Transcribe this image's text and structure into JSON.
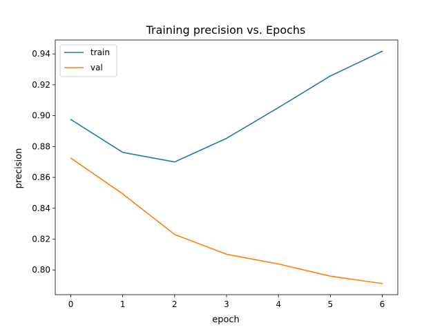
{
  "chart_data": {
    "type": "line",
    "title": "Training precision vs. Epochs",
    "xlabel": "epoch",
    "ylabel": "precision",
    "x": [
      0,
      1,
      2,
      3,
      4,
      5,
      6
    ],
    "xlim": [
      -0.3,
      6.3
    ],
    "ylim": [
      0.784,
      0.949
    ],
    "xticks": [
      0,
      1,
      2,
      3,
      4,
      5,
      6
    ],
    "yticks": [
      0.8,
      0.82,
      0.84,
      0.86,
      0.88,
      0.9,
      0.92,
      0.94
    ],
    "ytick_labels": [
      "0.80",
      "0.82",
      "0.84",
      "0.86",
      "0.88",
      "0.90",
      "0.92",
      "0.94"
    ],
    "grid": false,
    "legend_position": "top-left",
    "series": [
      {
        "name": "train",
        "color": "#1f77b4",
        "values": [
          0.8975,
          0.8762,
          0.87,
          0.8853,
          0.9052,
          0.9257,
          0.9417
        ]
      },
      {
        "name": "val",
        "color": "#ff7f0e",
        "values": [
          0.8725,
          0.8493,
          0.823,
          0.8102,
          0.8039,
          0.796,
          0.7912
        ]
      }
    ]
  }
}
